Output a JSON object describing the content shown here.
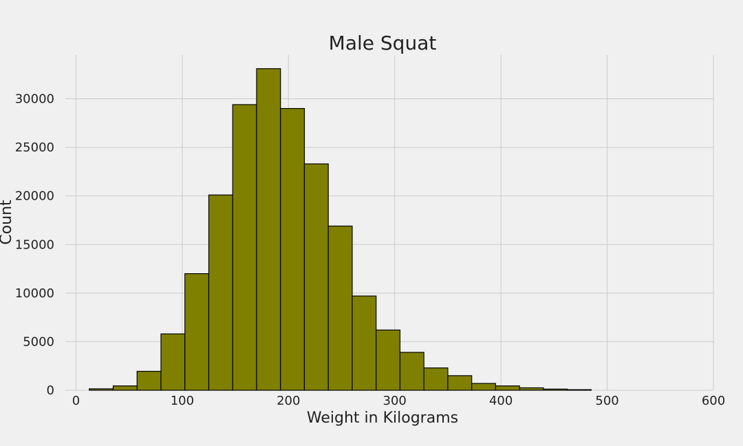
{
  "chart_data": {
    "type": "bar",
    "title": "Male Squat",
    "xlabel": "Weight in Kilograms",
    "ylabel": "Count",
    "xlim": [
      -10,
      600
    ],
    "ylim": [
      0,
      34500
    ],
    "grid": true,
    "bar_color": "#808000",
    "edge_color": "#000000",
    "background": "#f0f0f0",
    "grid_color": "#cbcbcb",
    "x_ticks": [
      0,
      100,
      200,
      300,
      400,
      500,
      600
    ],
    "y_ticks": [
      0,
      5000,
      10000,
      15000,
      20000,
      25000,
      30000
    ],
    "bins": [
      {
        "start": 12.5,
        "end": 35,
        "count": 150
      },
      {
        "start": 35,
        "end": 57.5,
        "count": 450
      },
      {
        "start": 57.5,
        "end": 80,
        "count": 1950
      },
      {
        "start": 80,
        "end": 102.5,
        "count": 5800
      },
      {
        "start": 102.5,
        "end": 125,
        "count": 12000
      },
      {
        "start": 125,
        "end": 147.5,
        "count": 20100
      },
      {
        "start": 147.5,
        "end": 170,
        "count": 29400
      },
      {
        "start": 170,
        "end": 192.5,
        "count": 33100
      },
      {
        "start": 192.5,
        "end": 215,
        "count": 29000
      },
      {
        "start": 215,
        "end": 237.5,
        "count": 23300
      },
      {
        "start": 237.5,
        "end": 260,
        "count": 16900
      },
      {
        "start": 260,
        "end": 282.5,
        "count": 9700
      },
      {
        "start": 282.5,
        "end": 305,
        "count": 6200
      },
      {
        "start": 305,
        "end": 327.5,
        "count": 3900
      },
      {
        "start": 327.5,
        "end": 350,
        "count": 2300
      },
      {
        "start": 350,
        "end": 372.5,
        "count": 1500
      },
      {
        "start": 372.5,
        "end": 395,
        "count": 700
      },
      {
        "start": 395,
        "end": 417.5,
        "count": 450
      },
      {
        "start": 417.5,
        "end": 440,
        "count": 250
      },
      {
        "start": 440,
        "end": 462.5,
        "count": 120
      },
      {
        "start": 462.5,
        "end": 485,
        "count": 60
      }
    ]
  }
}
